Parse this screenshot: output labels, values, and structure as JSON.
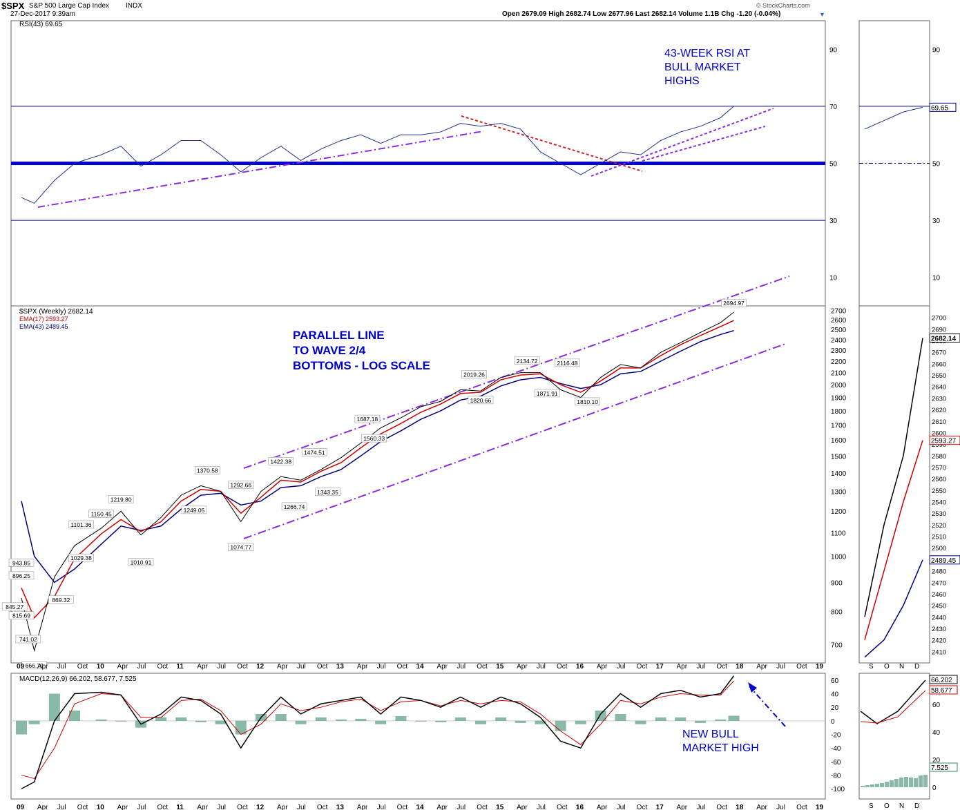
{
  "header": {
    "symbol": "$SPX",
    "name": "S&P 500 Large Cap Index",
    "exchange": "INDX",
    "date": "27-Dec-2017 9:39am",
    "brand": "© StockCharts.com",
    "quote": "Open 2679.09 High 2682.74 Low 2677.96 Last 2682.14 Volume 1.1B Chg -1.20 (-0.04%)"
  },
  "chart_data": [
    {
      "type": "line",
      "panel": "rsi",
      "legend": "RSI(43) 69.65",
      "ylim": [
        0,
        100
      ],
      "yticks": [
        10,
        30,
        50,
        70,
        90
      ],
      "reference_lines": [
        30,
        50,
        70
      ],
      "last_value_label": "69.65",
      "x": [
        "2009-01",
        "2009-03",
        "2009-06",
        "2009-09",
        "2010-01",
        "2010-04",
        "2010-07",
        "2010-10",
        "2011-01",
        "2011-04",
        "2011-07",
        "2011-10",
        "2012-01",
        "2012-04",
        "2012-07",
        "2012-10",
        "2013-01",
        "2013-04",
        "2013-07",
        "2013-10",
        "2014-01",
        "2014-04",
        "2014-07",
        "2014-10",
        "2015-01",
        "2015-04",
        "2015-07",
        "2015-10",
        "2016-01",
        "2016-04",
        "2016-07",
        "2016-10",
        "2017-01",
        "2017-04",
        "2017-07",
        "2017-10",
        "2017-12"
      ],
      "values": [
        38,
        36,
        44,
        50,
        53,
        56,
        49,
        53,
        58,
        58,
        53,
        47,
        52,
        56,
        51,
        55,
        58,
        60,
        57,
        60,
        60,
        61,
        64,
        63,
        64,
        62,
        54,
        50,
        46,
        50,
        54,
        53,
        58,
        61,
        63,
        66,
        70
      ],
      "annotation": "43-WEEK RSI AT BULL MARKET HIGHS"
    },
    {
      "type": "line",
      "panel": "price",
      "scale": "log",
      "legend": [
        "$SPX (Weekly) 2682.14",
        "EMA(17) 2593.27",
        "EMA(43) 2489.45"
      ],
      "ylim": [
        650,
        2750
      ],
      "yticks": [
        700,
        800,
        900,
        1000,
        1100,
        1200,
        1300,
        1400,
        1500,
        1600,
        1700,
        1800,
        1900,
        2000,
        2100,
        2200,
        2300,
        2400,
        2500,
        2600,
        2700
      ],
      "x_tick_labels": [
        "09",
        "Apr",
        "Jul",
        "Oct",
        "10",
        "Apr",
        "Jul",
        "Oct",
        "11",
        "Apr",
        "Jul",
        "Oct",
        "12",
        "Apr",
        "Jul",
        "Oct",
        "13",
        "Apr",
        "Jul",
        "Oct",
        "14",
        "Apr",
        "Jul",
        "Oct",
        "15",
        "Apr",
        "Jul",
        "Oct",
        "16",
        "Apr",
        "Jul",
        "Oct",
        "17",
        "Apr",
        "Jul",
        "Oct",
        "18",
        "Apr",
        "Jul",
        "Oct",
        "19"
      ],
      "x": [
        "2009-01",
        "2009-03",
        "2009-06",
        "2009-09",
        "2010-01",
        "2010-04",
        "2010-07",
        "2010-10",
        "2011-01",
        "2011-04",
        "2011-07",
        "2011-10",
        "2012-01",
        "2012-04",
        "2012-07",
        "2012-10",
        "2013-01",
        "2013-04",
        "2013-07",
        "2013-10",
        "2014-01",
        "2014-04",
        "2014-07",
        "2014-10",
        "2015-01",
        "2015-04",
        "2015-07",
        "2015-10",
        "2016-01",
        "2016-04",
        "2016-07",
        "2016-10",
        "2017-01",
        "2017-04",
        "2017-07",
        "2017-10",
        "2017-12"
      ],
      "series": [
        {
          "name": "$SPX",
          "color": "#000000",
          "values": [
            845,
            683,
            920,
            1044,
            1120,
            1200,
            1090,
            1170,
            1280,
            1330,
            1300,
            1150,
            1300,
            1380,
            1360,
            1420,
            1490,
            1580,
            1680,
            1750,
            1830,
            1870,
            1960,
            1950,
            2060,
            2100,
            2100,
            1960,
            1900,
            2060,
            2170,
            2140,
            2280,
            2370,
            2470,
            2570,
            2682
          ]
        },
        {
          "name": "EMA(17)",
          "color": "#cc0000",
          "values": [
            880,
            780,
            850,
            990,
            1095,
            1160,
            1105,
            1150,
            1250,
            1310,
            1300,
            1190,
            1270,
            1360,
            1350,
            1410,
            1460,
            1550,
            1640,
            1710,
            1790,
            1850,
            1930,
            1940,
            2040,
            2080,
            2090,
            2000,
            1940,
            2030,
            2140,
            2140,
            2250,
            2350,
            2440,
            2530,
            2593
          ]
        },
        {
          "name": "EMA(43)",
          "color": "#000080",
          "values": [
            1250,
            1000,
            900,
            950,
            1050,
            1130,
            1110,
            1130,
            1210,
            1280,
            1290,
            1230,
            1250,
            1320,
            1330,
            1380,
            1420,
            1500,
            1590,
            1660,
            1740,
            1800,
            1880,
            1910,
            1990,
            2040,
            2060,
            2010,
            1970,
            2000,
            2090,
            2110,
            2200,
            2290,
            2380,
            2450,
            2489
          ]
        }
      ],
      "peak_trough_labels": [
        {
          "x": "2009-03",
          "y": 666.79,
          "label": "666.79"
        },
        {
          "x": "2009-02",
          "y": 741.02,
          "label": "741.02"
        },
        {
          "x": "2009-01",
          "y": 815.69,
          "label": "815.69"
        },
        {
          "x": "2008-12",
          "y": 845.27,
          "label": "845.27"
        },
        {
          "x": "2009-01",
          "y": 896.25,
          "label": "896.25"
        },
        {
          "x": "2009-01",
          "y": 943.85,
          "label": "943.85"
        },
        {
          "x": "2009-07",
          "y": 869.32,
          "label": "869.32"
        },
        {
          "x": "2009-10",
          "y": 1029.38,
          "label": "1029.38"
        },
        {
          "x": "2009-10",
          "y": 1101.36,
          "label": "1101.36"
        },
        {
          "x": "2010-01",
          "y": 1150.45,
          "label": "1150.45"
        },
        {
          "x": "2010-04",
          "y": 1219.8,
          "label": "1219.80"
        },
        {
          "x": "2010-07",
          "y": 1010.91,
          "label": "1010.91"
        },
        {
          "x": "2011-03",
          "y": 1249.05,
          "label": "1249.05"
        },
        {
          "x": "2011-05",
          "y": 1370.58,
          "label": "1370.58"
        },
        {
          "x": "2011-10",
          "y": 1074.77,
          "label": "1074.77"
        },
        {
          "x": "2011-10",
          "y": 1292.66,
          "label": "1292.66"
        },
        {
          "x": "2012-04",
          "y": 1422.38,
          "label": "1422.38"
        },
        {
          "x": "2012-06",
          "y": 1266.74,
          "label": "1266.74"
        },
        {
          "x": "2012-09",
          "y": 1474.51,
          "label": "1474.51"
        },
        {
          "x": "2012-11",
          "y": 1343.35,
          "label": "1343.35"
        },
        {
          "x": "2013-05",
          "y": 1687.18,
          "label": "1687.18"
        },
        {
          "x": "2013-06",
          "y": 1560.33,
          "label": "1560.33"
        },
        {
          "x": "2014-09",
          "y": 2019.26,
          "label": "2019.26"
        },
        {
          "x": "2014-10",
          "y": 1820.66,
          "label": "1820.66"
        },
        {
          "x": "2015-05",
          "y": 2134.72,
          "label": "2134.72"
        },
        {
          "x": "2015-08",
          "y": 1871.91,
          "label": "1871.91"
        },
        {
          "x": "2015-11",
          "y": 2116.48,
          "label": "2116.48"
        },
        {
          "x": "2016-02",
          "y": 1810.1,
          "label": "1810.10"
        },
        {
          "x": "2017-12",
          "y": 2694.97,
          "label": "2694.97"
        }
      ],
      "annotation": "PARALLEL LINE TO WAVE 2/4 BOTTOMS - LOG SCALE"
    },
    {
      "type": "line",
      "panel": "macd",
      "legend": "MACD(12,26,9) 66.202, 58.677, 7.525",
      "ylim": [
        -115,
        70
      ],
      "yticks": [
        -100,
        -80,
        -60,
        -40,
        -20,
        0,
        20,
        40,
        60
      ],
      "x": [
        "2009-01",
        "2009-03",
        "2009-06",
        "2009-09",
        "2010-01",
        "2010-04",
        "2010-07",
        "2010-10",
        "2011-01",
        "2011-04",
        "2011-07",
        "2011-10",
        "2012-01",
        "2012-04",
        "2012-07",
        "2012-10",
        "2013-01",
        "2013-04",
        "2013-07",
        "2013-10",
        "2014-01",
        "2014-04",
        "2014-07",
        "2014-10",
        "2015-01",
        "2015-04",
        "2015-07",
        "2015-10",
        "2016-01",
        "2016-04",
        "2016-07",
        "2016-10",
        "2017-01",
        "2017-04",
        "2017-07",
        "2017-10",
        "2017-12"
      ],
      "series": [
        {
          "name": "MACD",
          "color": "#000000",
          "values": [
            -100,
            -90,
            0,
            40,
            42,
            38,
            -5,
            10,
            35,
            30,
            10,
            -40,
            5,
            35,
            10,
            25,
            30,
            35,
            10,
            35,
            30,
            20,
            35,
            20,
            35,
            25,
            5,
            -30,
            -40,
            10,
            40,
            20,
            40,
            45,
            35,
            40,
            66.2
          ]
        },
        {
          "name": "Signal",
          "color": "#cc0000",
          "values": [
            -80,
            -85,
            -40,
            25,
            40,
            38,
            5,
            5,
            30,
            32,
            15,
            -20,
            -5,
            25,
            15,
            20,
            28,
            32,
            15,
            28,
            30,
            22,
            30,
            25,
            30,
            28,
            10,
            -15,
            -35,
            -5,
            30,
            25,
            35,
            40,
            38,
            38,
            58.7
          ]
        },
        {
          "name": "Histogram",
          "color": "#2e8b6e",
          "values": [
            -20,
            -5,
            40,
            15,
            2,
            0,
            -10,
            5,
            5,
            -2,
            -5,
            -20,
            10,
            10,
            -5,
            5,
            2,
            3,
            -5,
            7,
            0,
            -2,
            5,
            -5,
            5,
            -3,
            -5,
            -15,
            -5,
            15,
            10,
            -5,
            5,
            5,
            -3,
            2,
            7.5
          ]
        }
      ],
      "annotation": "NEW BULL MARKET HIGH"
    },
    {
      "type": "line",
      "panel": "rsi-zoom",
      "yticks": [
        10,
        30,
        50,
        70,
        90
      ],
      "last_value_label": "69.65",
      "x": [
        "2017-09",
        "2017-10",
        "2017-11",
        "2017-12"
      ],
      "values": [
        62,
        65,
        68,
        69.65
      ]
    },
    {
      "type": "line",
      "panel": "price-zoom",
      "yticks": [
        2410,
        2420,
        2430,
        2440,
        2450,
        2460,
        2470,
        2480,
        2490,
        2500,
        2510,
        2520,
        2530,
        2540,
        2550,
        2560,
        2570,
        2580,
        2590,
        2600,
        2610,
        2620,
        2630,
        2640,
        2650,
        2660,
        2670,
        2680,
        2690,
        2700
      ],
      "x_tick_labels": [
        "S",
        "O",
        "N",
        "D"
      ],
      "x": [
        "2017-09",
        "2017-10",
        "2017-11",
        "2017-12"
      ],
      "series": [
        {
          "name": "$SPX",
          "color": "#000000",
          "values": [
            2440,
            2520,
            2580,
            2682.14
          ]
        },
        {
          "name": "EMA(17)",
          "color": "#cc0000",
          "values": [
            2420,
            2480,
            2540,
            2593.27
          ]
        },
        {
          "name": "EMA(43)",
          "color": "#000080",
          "values": [
            2405,
            2420,
            2450,
            2489.45
          ]
        }
      ],
      "value_labels": [
        "2682.14",
        "2593.27",
        "2489.45"
      ]
    },
    {
      "type": "line",
      "panel": "macd-zoom",
      "yticks": [
        0,
        20,
        40,
        60
      ],
      "x_tick_labels": [
        "S",
        "O",
        "N",
        "D"
      ],
      "value_labels": [
        "66.202",
        "58.677",
        "7.525"
      ]
    }
  ],
  "colors": {
    "annotation": "#0000cc",
    "trendline": "#8a2be2",
    "rsi_line": "#1f2f8f",
    "ema17": "#cc0000",
    "ema43": "#000080",
    "hist": "#3a8a6e"
  }
}
